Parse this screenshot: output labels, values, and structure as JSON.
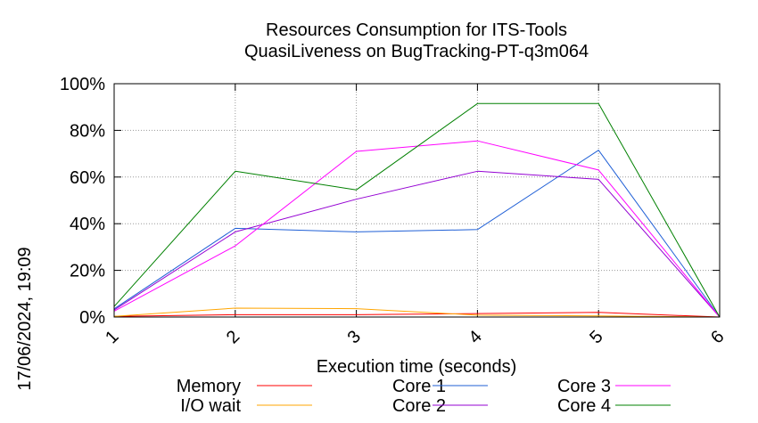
{
  "chart_data": {
    "type": "line",
    "title": "Resources Consumption for ITS-Tools",
    "subtitle": "QuasiLiveness on BugTracking-PT-q3m064",
    "xlabel": "Execution time (seconds)",
    "ylabel": "",
    "side_label": "17/06/2024, 19:09",
    "x": [
      1,
      2,
      3,
      4,
      5,
      6
    ],
    "xlim": [
      1,
      6
    ],
    "ylim": [
      0,
      100
    ],
    "xticks": [
      "1",
      "2",
      "3",
      "4",
      "5",
      "6"
    ],
    "yticks": [
      "0%",
      "20%",
      "40%",
      "60%",
      "80%",
      "100%"
    ],
    "grid": true,
    "legend_position": "bottom",
    "series": [
      {
        "name": "Memory",
        "color": "#ff0000",
        "values": [
          0.3,
          1.0,
          1.0,
          1.5,
          2.0,
          0
        ]
      },
      {
        "name": "I/O wait",
        "color": "#ffa500",
        "values": [
          0.3,
          3.8,
          3.6,
          0.8,
          0.5,
          0
        ]
      },
      {
        "name": "Core 1",
        "color": "#1f5fd6",
        "values": [
          3.5,
          38.0,
          36.5,
          37.5,
          71.5,
          0
        ]
      },
      {
        "name": "Core 2",
        "color": "#9400d3",
        "values": [
          3.0,
          36.5,
          50.5,
          62.5,
          59.0,
          0
        ]
      },
      {
        "name": "Core 3",
        "color": "#ff00ff",
        "values": [
          2.5,
          30.5,
          71.0,
          75.5,
          63.0,
          0
        ]
      },
      {
        "name": "Core 4",
        "color": "#008000",
        "values": [
          4.5,
          62.5,
          54.5,
          91.5,
          91.5,
          0
        ]
      }
    ]
  }
}
